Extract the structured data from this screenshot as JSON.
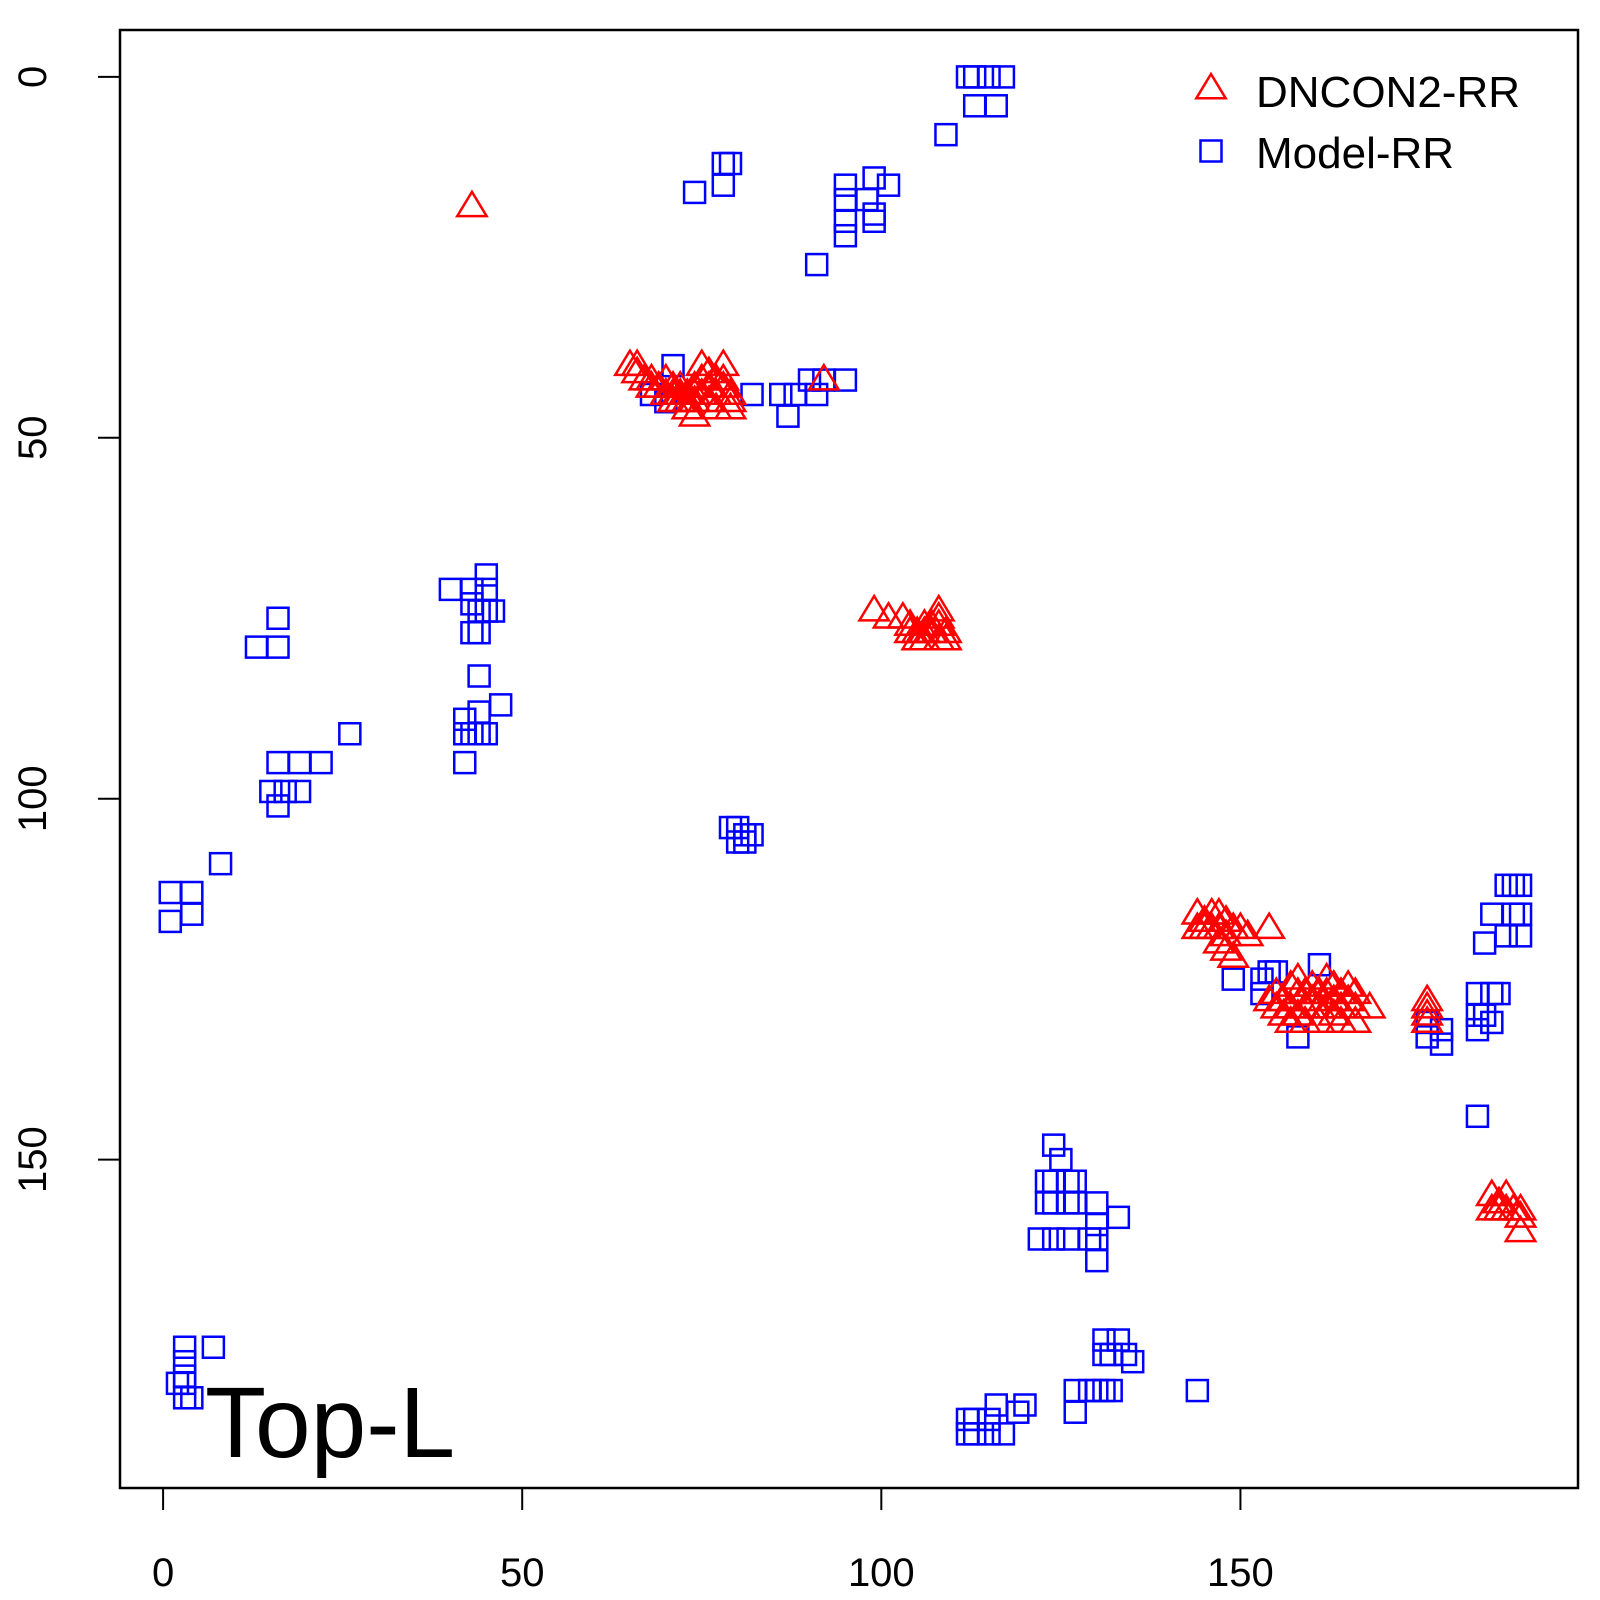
{
  "chart_data": {
    "type": "scatter",
    "title": "",
    "xlabel": "",
    "ylabel": "",
    "xlim": [
      -6,
      197
    ],
    "ylim": [
      195.5,
      -6.5
    ],
    "y_inverted": true,
    "x_ticks": [
      0,
      50,
      100,
      150
    ],
    "y_ticks": [
      0,
      50,
      100,
      150
    ],
    "x_tick_labels": [
      "0",
      "50",
      "100",
      "150"
    ],
    "y_tick_labels": [
      "0",
      "50",
      "100",
      "150"
    ],
    "grid": false,
    "legend_position": "top-right",
    "annotation": "Top-L",
    "series": [
      {
        "name": "DNCON2-RR",
        "marker": "triangle-open",
        "color": "#ff0000",
        "points": [
          [
            43,
            18
          ],
          [
            65,
            40
          ],
          [
            66,
            40
          ],
          [
            66,
            41
          ],
          [
            67,
            42
          ],
          [
            68,
            42
          ],
          [
            68,
            43
          ],
          [
            69,
            43
          ],
          [
            70,
            42
          ],
          [
            70,
            44
          ],
          [
            71,
            43
          ],
          [
            71,
            44
          ],
          [
            71,
            45
          ],
          [
            72,
            43
          ],
          [
            72,
            44
          ],
          [
            72,
            45
          ],
          [
            73,
            44
          ],
          [
            73,
            45
          ],
          [
            73,
            46
          ],
          [
            74,
            43
          ],
          [
            74,
            44
          ],
          [
            74,
            45
          ],
          [
            74,
            47
          ],
          [
            75,
            40
          ],
          [
            75,
            42
          ],
          [
            75,
            44
          ],
          [
            76,
            41
          ],
          [
            76,
            43
          ],
          [
            76,
            45
          ],
          [
            77,
            42
          ],
          [
            77,
            44
          ],
          [
            77,
            46
          ],
          [
            78,
            40
          ],
          [
            78,
            42
          ],
          [
            78,
            43
          ],
          [
            79,
            44
          ],
          [
            79,
            45
          ],
          [
            79,
            46
          ],
          [
            92,
            42
          ],
          [
            99,
            74
          ],
          [
            101,
            75
          ],
          [
            103,
            75
          ],
          [
            104,
            76
          ],
          [
            104,
            77
          ],
          [
            105,
            77
          ],
          [
            105,
            78
          ],
          [
            106,
            76
          ],
          [
            106,
            77
          ],
          [
            106,
            78
          ],
          [
            107,
            76
          ],
          [
            107,
            77
          ],
          [
            108,
            74
          ],
          [
            108,
            75
          ],
          [
            108,
            76
          ],
          [
            108,
            78
          ],
          [
            109,
            77
          ],
          [
            109,
            78
          ],
          [
            144,
            116
          ],
          [
            144,
            118
          ],
          [
            145,
            117
          ],
          [
            145,
            118
          ],
          [
            146,
            116
          ],
          [
            146,
            118
          ],
          [
            147,
            116
          ],
          [
            147,
            118
          ],
          [
            147,
            120
          ],
          [
            148,
            117
          ],
          [
            148,
            119
          ],
          [
            148,
            121
          ],
          [
            149,
            118
          ],
          [
            149,
            122
          ],
          [
            150,
            118
          ],
          [
            151,
            119
          ],
          [
            154,
            118
          ],
          [
            154,
            128
          ],
          [
            155,
            127
          ],
          [
            155,
            129
          ],
          [
            156,
            128
          ],
          [
            156,
            130
          ],
          [
            157,
            126
          ],
          [
            157,
            129
          ],
          [
            157,
            131
          ],
          [
            158,
            125
          ],
          [
            158,
            127
          ],
          [
            158,
            130
          ],
          [
            159,
            127
          ],
          [
            159,
            129
          ],
          [
            159,
            131
          ],
          [
            160,
            126
          ],
          [
            160,
            128
          ],
          [
            161,
            127
          ],
          [
            161,
            129
          ],
          [
            161,
            131
          ],
          [
            162,
            125
          ],
          [
            162,
            127
          ],
          [
            162,
            129
          ],
          [
            163,
            126
          ],
          [
            163,
            128
          ],
          [
            163,
            130
          ],
          [
            164,
            127
          ],
          [
            164,
            129
          ],
          [
            164,
            131
          ],
          [
            165,
            126
          ],
          [
            165,
            128
          ],
          [
            166,
            127
          ],
          [
            166,
            129
          ],
          [
            166,
            131
          ],
          [
            168,
            129
          ],
          [
            176,
            128
          ],
          [
            176,
            129
          ],
          [
            176,
            130
          ],
          [
            176,
            131
          ],
          [
            185,
            155
          ],
          [
            185,
            157
          ],
          [
            186,
            156
          ],
          [
            186,
            157
          ],
          [
            187,
            155
          ],
          [
            187,
            157
          ],
          [
            188,
            157
          ],
          [
            189,
            157
          ],
          [
            189,
            158
          ],
          [
            189,
            160
          ]
        ]
      },
      {
        "name": "Model-RR",
        "marker": "square-open",
        "color": "#0000ff",
        "points": [
          [
            112,
            0
          ],
          [
            113,
            0
          ],
          [
            115,
            0
          ],
          [
            117,
            0
          ],
          [
            113,
            4
          ],
          [
            116,
            4
          ],
          [
            109,
            8
          ],
          [
            78,
            12
          ],
          [
            79,
            12
          ],
          [
            74,
            16
          ],
          [
            78,
            15
          ],
          [
            95,
            15
          ],
          [
            99,
            14
          ],
          [
            101,
            15
          ],
          [
            95,
            17
          ],
          [
            98,
            17
          ],
          [
            99,
            19
          ],
          [
            95,
            20
          ],
          [
            99,
            20
          ],
          [
            95,
            22
          ],
          [
            91,
            26
          ],
          [
            71,
            40
          ],
          [
            68,
            44
          ],
          [
            70,
            45
          ],
          [
            82,
            44
          ],
          [
            86,
            44
          ],
          [
            88,
            44
          ],
          [
            90,
            42
          ],
          [
            92,
            42
          ],
          [
            91,
            44
          ],
          [
            95,
            42
          ],
          [
            87,
            47
          ],
          [
            40,
            71
          ],
          [
            43,
            71
          ],
          [
            45,
            69
          ],
          [
            45,
            71
          ],
          [
            43,
            73
          ],
          [
            44,
            74
          ],
          [
            45,
            74
          ],
          [
            46,
            74
          ],
          [
            43,
            77
          ],
          [
            44,
            77
          ],
          [
            16,
            75
          ],
          [
            13,
            79
          ],
          [
            16,
            79
          ],
          [
            44,
            83
          ],
          [
            47,
            87
          ],
          [
            42,
            89
          ],
          [
            44,
            88
          ],
          [
            42,
            91
          ],
          [
            43,
            91
          ],
          [
            44,
            91
          ],
          [
            45,
            91
          ],
          [
            42,
            95
          ],
          [
            26,
            91
          ],
          [
            16,
            95
          ],
          [
            19,
            95
          ],
          [
            22,
            95
          ],
          [
            15,
            99
          ],
          [
            17,
            99
          ],
          [
            19,
            99
          ],
          [
            16,
            101
          ],
          [
            79,
            104
          ],
          [
            80,
            104
          ],
          [
            81,
            105
          ],
          [
            82,
            105
          ],
          [
            80,
            106
          ],
          [
            81,
            106
          ],
          [
            8,
            109
          ],
          [
            1,
            113
          ],
          [
            4,
            113
          ],
          [
            1,
            117
          ],
          [
            4,
            116
          ],
          [
            187,
            112
          ],
          [
            188,
            112
          ],
          [
            189,
            112
          ],
          [
            185,
            116
          ],
          [
            188,
            116
          ],
          [
            189,
            116
          ],
          [
            187,
            119
          ],
          [
            189,
            119
          ],
          [
            184,
            120
          ],
          [
            161,
            123
          ],
          [
            154,
            124
          ],
          [
            155,
            124
          ],
          [
            153,
            125
          ],
          [
            153,
            127
          ],
          [
            149,
            125
          ],
          [
            183,
            127
          ],
          [
            185,
            127
          ],
          [
            186,
            127
          ],
          [
            183,
            130
          ],
          [
            184,
            130
          ],
          [
            185,
            131
          ],
          [
            183,
            132
          ],
          [
            176,
            131
          ],
          [
            178,
            132
          ],
          [
            176,
            133
          ],
          [
            178,
            134
          ],
          [
            158,
            133
          ],
          [
            183,
            144
          ],
          [
            124,
            148
          ],
          [
            125,
            150
          ],
          [
            123,
            153
          ],
          [
            124,
            153
          ],
          [
            126,
            153
          ],
          [
            127,
            153
          ],
          [
            123,
            156
          ],
          [
            124,
            156
          ],
          [
            126,
            156
          ],
          [
            127,
            156
          ],
          [
            130,
            156
          ],
          [
            133,
            158
          ],
          [
            130,
            159
          ],
          [
            122,
            161
          ],
          [
            124,
            161
          ],
          [
            126,
            161
          ],
          [
            129,
            161
          ],
          [
            130,
            161
          ],
          [
            130,
            164
          ],
          [
            131,
            175
          ],
          [
            133,
            175
          ],
          [
            131,
            177
          ],
          [
            132,
            177
          ],
          [
            134,
            177
          ],
          [
            135,
            178
          ],
          [
            7,
            176
          ],
          [
            3,
            176
          ],
          [
            3,
            178
          ],
          [
            3,
            180
          ],
          [
            2,
            181
          ],
          [
            3,
            181
          ],
          [
            3,
            183
          ],
          [
            4,
            183
          ],
          [
            127,
            182
          ],
          [
            129,
            182
          ],
          [
            130,
            182
          ],
          [
            131,
            182
          ],
          [
            132,
            182
          ],
          [
            127,
            185
          ],
          [
            144,
            182
          ],
          [
            116,
            184
          ],
          [
            120,
            184
          ],
          [
            119,
            185
          ],
          [
            112,
            186
          ],
          [
            113,
            186
          ],
          [
            115,
            186
          ],
          [
            112,
            188
          ],
          [
            113,
            188
          ],
          [
            115,
            188
          ],
          [
            117,
            188
          ]
        ]
      }
    ]
  }
}
